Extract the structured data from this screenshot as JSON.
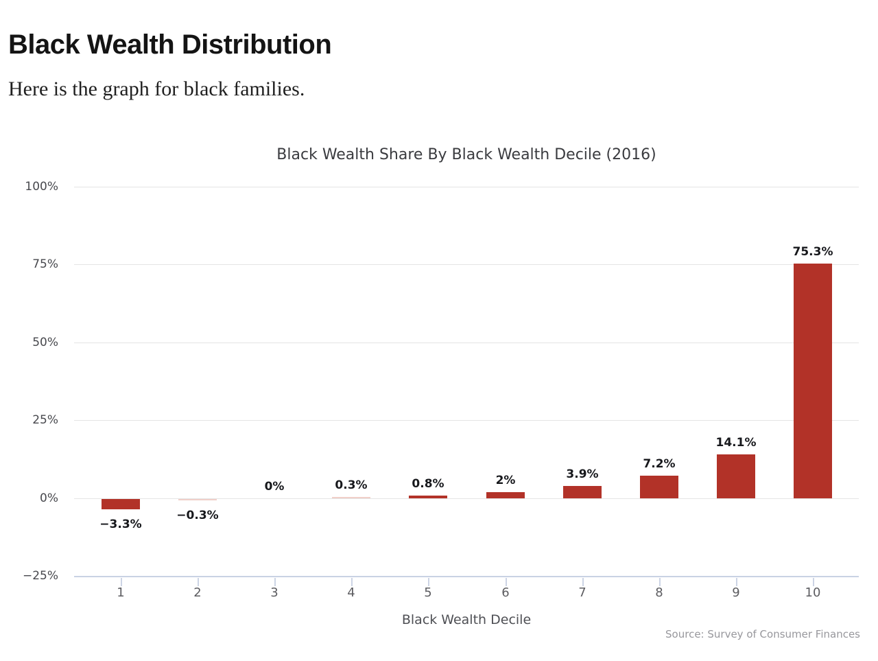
{
  "page": {
    "heading": "Black Wealth Distribution",
    "intro": "Here is the graph for black families."
  },
  "chart_data": {
    "type": "bar",
    "title": "Black Wealth Share By Black Wealth Decile (2016)",
    "categories": [
      "1",
      "2",
      "3",
      "4",
      "5",
      "6",
      "7",
      "8",
      "9",
      "10"
    ],
    "values": [
      -3.3,
      -0.3,
      0,
      0.3,
      0.8,
      2,
      3.9,
      7.2,
      14.1,
      75.3
    ],
    "value_labels": [
      "−3.3%",
      "−0.3%",
      "0%",
      "0.3%",
      "0.8%",
      "2%",
      "3.9%",
      "7.2%",
      "14.1%",
      "75.3%"
    ],
    "xlabel": "Black Wealth Decile",
    "ylabel": "",
    "ylim": [
      -25,
      100
    ],
    "yticks": [
      100,
      75,
      50,
      25,
      0,
      -25
    ],
    "ytick_labels": [
      "100%",
      "75%",
      "50%",
      "25%",
      "0%",
      "−25%"
    ],
    "grid": true,
    "legend": "none",
    "source": "Source: Survey of Consumer Finances",
    "colors": {
      "bar": "#b23228",
      "bar_faint": "#f0cfc9",
      "gridline": "#e4e4e4",
      "axis_line": "#c9d2e3"
    }
  }
}
